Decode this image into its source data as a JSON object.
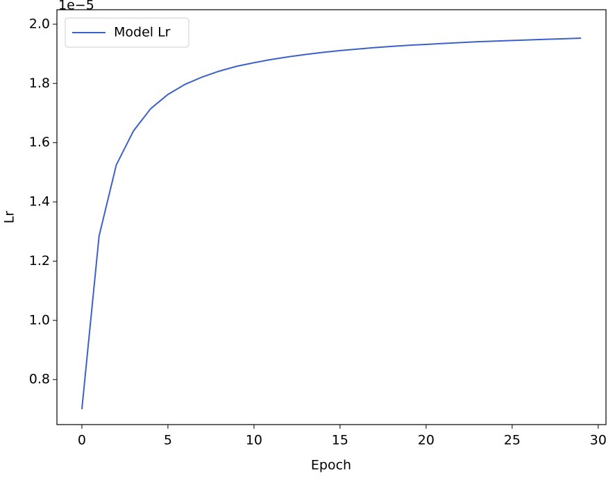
{
  "chart_data": {
    "type": "line",
    "x": [
      0,
      1,
      2,
      3,
      4,
      5,
      6,
      7,
      8,
      9,
      10,
      11,
      12,
      13,
      14,
      15,
      16,
      17,
      18,
      19,
      20,
      21,
      22,
      23,
      24,
      25,
      26,
      27,
      28,
      29
    ],
    "series": [
      {
        "name": "Model Lr",
        "color": "#3b5fcd",
        "values": [
          0.7,
          1.285,
          1.525,
          1.64,
          1.715,
          1.763,
          1.797,
          1.822,
          1.842,
          1.858,
          1.87,
          1.881,
          1.89,
          1.898,
          1.905,
          1.911,
          1.916,
          1.921,
          1.925,
          1.929,
          1.932,
          1.935,
          1.938,
          1.941,
          1.943,
          1.945,
          1.947,
          1.949,
          1.951,
          1.953
        ]
      }
    ],
    "x_label": "Epoch",
    "y_label": "Lr",
    "y_offset_label": "1e−5",
    "xlim": [
      -1.45,
      30.45
    ],
    "ylim": [
      0.648,
      2.049
    ],
    "xticks": [
      0,
      5,
      10,
      15,
      20,
      25,
      30
    ],
    "yticks": [
      0.8,
      {
        "value": 1.0,
        "label": "1.0"
      },
      1.2,
      1.4,
      1.6,
      1.8,
      {
        "value": 2.0,
        "label": "2.0"
      }
    ],
    "grid": false,
    "legend": "upper left"
  }
}
